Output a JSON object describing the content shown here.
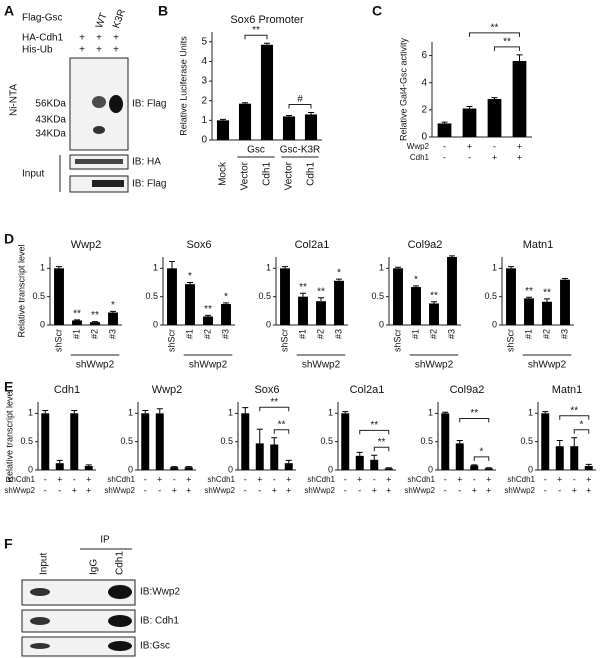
{
  "panel_labels": [
    "A",
    "B",
    "C",
    "D",
    "E",
    "F"
  ],
  "blot_a": {
    "header": "Flag-Gsc",
    "columns": [
      "WT",
      "K3R"
    ],
    "rows": [
      {
        "name": "HA-Cdh1",
        "signs": [
          "+",
          "+",
          "+"
        ]
      },
      {
        "name": "His-Ub",
        "signs": [
          "+",
          "+",
          "+"
        ]
      }
    ],
    "pulldown": "Ni-NTA",
    "markers": [
      "56KDa",
      "43KDa",
      "34KDa"
    ],
    "probes": [
      "IB: Flag",
      "IB: HA",
      "IB: Flag"
    ],
    "input": "Input"
  },
  "blot_f": {
    "ip": "IP",
    "lanes": [
      "Input",
      "IgG",
      "Cdh1"
    ],
    "probes": [
      "IB:Wwp2",
      "IB: Cdh1",
      "IB:Gsc"
    ]
  },
  "chart_data": [
    {
      "type": "bar",
      "title": "Sox6 Promoter",
      "ylabel": "Relative Luciferase Units",
      "categories": [
        "Mock",
        "Vector",
        "Cdh1",
        "Vector",
        "Cdh1"
      ],
      "groups": [
        "Gsc",
        "Gsc-K3R"
      ],
      "values": [
        1.0,
        1.85,
        4.85,
        1.2,
        1.3
      ],
      "errors": [
        0.05,
        0.05,
        0.08,
        0.05,
        0.1
      ],
      "ylim": [
        0,
        5.5
      ],
      "yticks": [
        0,
        1,
        2,
        3,
        4,
        5
      ],
      "annotations": [
        "**",
        "#"
      ],
      "color": "#000000"
    },
    {
      "type": "bar",
      "ylabel": "Relative Gal4-Gsc activity",
      "conditions": [
        {
          "name": "Wwp2",
          "signs": [
            "-",
            "+",
            "-",
            "+"
          ]
        },
        {
          "name": "Cdh1",
          "signs": [
            "-",
            "-",
            "+",
            "+"
          ]
        }
      ],
      "values": [
        1.0,
        2.1,
        2.8,
        5.6
      ],
      "errors": [
        0.1,
        0.15,
        0.1,
        0.45
      ],
      "ylim": [
        0,
        7
      ],
      "yticks": [
        0,
        2,
        4,
        6
      ],
      "annotations": [
        "**",
        "**"
      ],
      "color": "#000000"
    },
    {
      "type": "bar",
      "title": "Wwp2",
      "ylabel": "Relative transcript level",
      "categories": [
        "shScr",
        "#1",
        "#2",
        "#3"
      ],
      "group": "shWwp2",
      "values": [
        1.0,
        0.08,
        0.05,
        0.22
      ],
      "errors": [
        0.03,
        0.01,
        0.01,
        0.02
      ],
      "significance": [
        null,
        "**",
        "**",
        "*"
      ],
      "ylim": [
        0,
        1.2
      ],
      "yticks": [
        0,
        0.5,
        1
      ],
      "color": "#000000"
    },
    {
      "type": "bar",
      "title": "Sox6",
      "categories": [
        "shScr",
        "#1",
        "#2",
        "#3"
      ],
      "group": "shWwp2",
      "values": [
        1.0,
        0.72,
        0.15,
        0.37
      ],
      "errors": [
        0.12,
        0.03,
        0.02,
        0.02
      ],
      "significance": [
        null,
        "*",
        "**",
        "*"
      ],
      "ylim": [
        0,
        1.2
      ],
      "yticks": [
        0,
        0.5,
        1
      ],
      "color": "#000000"
    },
    {
      "type": "bar",
      "title": "Col2a1",
      "categories": [
        "shScr",
        "#1",
        "#2",
        "#3"
      ],
      "group": "shWwp2",
      "values": [
        1.0,
        0.5,
        0.42,
        0.78
      ],
      "errors": [
        0.03,
        0.06,
        0.06,
        0.03
      ],
      "significance": [
        null,
        "**",
        "**",
        "*"
      ],
      "ylim": [
        0,
        1.2
      ],
      "yticks": [
        0,
        0.5,
        1
      ],
      "color": "#000000"
    },
    {
      "type": "bar",
      "title": "Col9a2",
      "categories": [
        "shScr",
        "#1",
        "#2",
        "#3"
      ],
      "group": "shWwp2",
      "values": [
        1.0,
        0.67,
        0.38,
        1.2
      ],
      "errors": [
        0.02,
        0.02,
        0.03,
        0.02
      ],
      "significance": [
        null,
        "*",
        "**",
        null
      ],
      "ylim": [
        0,
        1.2
      ],
      "yticks": [
        0,
        0.5,
        1
      ],
      "color": "#000000"
    },
    {
      "type": "bar",
      "title": "Matn1",
      "categories": [
        "shScr",
        "#1",
        "#2",
        "#3"
      ],
      "group": "shWwp2",
      "values": [
        1.0,
        0.47,
        0.41,
        0.8
      ],
      "errors": [
        0.03,
        0.02,
        0.05,
        0.02
      ],
      "significance": [
        null,
        "**",
        "**",
        null
      ],
      "ylim": [
        0,
        1.2
      ],
      "yticks": [
        0,
        0.5,
        1
      ],
      "color": "#000000"
    },
    {
      "type": "bar",
      "title": "Cdh1",
      "ylabel": "Relative transcript level",
      "conditions": [
        {
          "name": "shCdh1",
          "signs": [
            "-",
            "+",
            "-",
            "+"
          ]
        },
        {
          "name": "shWwp2",
          "signs": [
            "-",
            "-",
            "+",
            "+"
          ]
        }
      ],
      "values": [
        1.0,
        0.12,
        1.0,
        0.07
      ],
      "errors": [
        0.05,
        0.05,
        0.05,
        0.02
      ],
      "ylim": [
        0,
        1.2
      ],
      "yticks": [
        0,
        0.5,
        1
      ],
      "color": "#000000"
    },
    {
      "type": "bar",
      "title": "Wwp2",
      "conditions": [
        {
          "name": "shCdh1",
          "signs": [
            "-",
            "+",
            "-",
            "+"
          ]
        },
        {
          "name": "shWwp2",
          "signs": [
            "-",
            "-",
            "+",
            "+"
          ]
        }
      ],
      "values": [
        1.0,
        1.0,
        0.05,
        0.05
      ],
      "errors": [
        0.05,
        0.08,
        0.01,
        0.01
      ],
      "ylim": [
        0,
        1.2
      ],
      "yticks": [
        0,
        0.5,
        1
      ],
      "color": "#000000"
    },
    {
      "type": "bar",
      "title": "Sox6",
      "conditions": [
        {
          "name": "shCdh1",
          "signs": [
            "-",
            "+",
            "-",
            "+"
          ]
        },
        {
          "name": "shWwp2",
          "signs": [
            "-",
            "-",
            "+",
            "+"
          ]
        }
      ],
      "values": [
        1.0,
        0.47,
        0.45,
        0.12
      ],
      "errors": [
        0.1,
        0.25,
        0.12,
        0.05
      ],
      "ylim": [
        0,
        1.2
      ],
      "yticks": [
        0,
        0.5,
        1
      ],
      "annotations": [
        "**",
        "**"
      ],
      "color": "#000000"
    },
    {
      "type": "bar",
      "title": "Col2a1",
      "conditions": [
        {
          "name": "shCdh1",
          "signs": [
            "-",
            "+",
            "-",
            "+"
          ]
        },
        {
          "name": "shWwp2",
          "signs": [
            "-",
            "-",
            "+",
            "+"
          ]
        }
      ],
      "values": [
        1.0,
        0.25,
        0.18,
        0.03
      ],
      "errors": [
        0.03,
        0.06,
        0.08,
        0.01
      ],
      "ylim": [
        0,
        1.2
      ],
      "yticks": [
        0,
        0.5,
        1
      ],
      "annotations": [
        "**",
        "**"
      ],
      "color": "#000000"
    },
    {
      "type": "bar",
      "title": "Col9a2",
      "conditions": [
        {
          "name": "shCdh1",
          "signs": [
            "-",
            "+",
            "-",
            "+"
          ]
        },
        {
          "name": "shWwp2",
          "signs": [
            "-",
            "-",
            "+",
            "+"
          ]
        }
      ],
      "values": [
        1.0,
        0.47,
        0.08,
        0.03
      ],
      "errors": [
        0.02,
        0.05,
        0.01,
        0.01
      ],
      "ylim": [
        0,
        1.2
      ],
      "yticks": [
        0,
        0.5,
        1
      ],
      "annotations": [
        "**",
        "*"
      ],
      "color": "#000000"
    },
    {
      "type": "bar",
      "title": "Matn1",
      "conditions": [
        {
          "name": "shCdh1",
          "signs": [
            "-",
            "+",
            "-",
            "+"
          ]
        },
        {
          "name": "shWwp2",
          "signs": [
            "-",
            "-",
            "+",
            "+"
          ]
        }
      ],
      "values": [
        1.0,
        0.42,
        0.42,
        0.07
      ],
      "errors": [
        0.03,
        0.1,
        0.15,
        0.03
      ],
      "ylim": [
        0,
        1.2
      ],
      "yticks": [
        0,
        0.5,
        1
      ],
      "annotations": [
        "**",
        "*"
      ],
      "color": "#000000"
    }
  ]
}
